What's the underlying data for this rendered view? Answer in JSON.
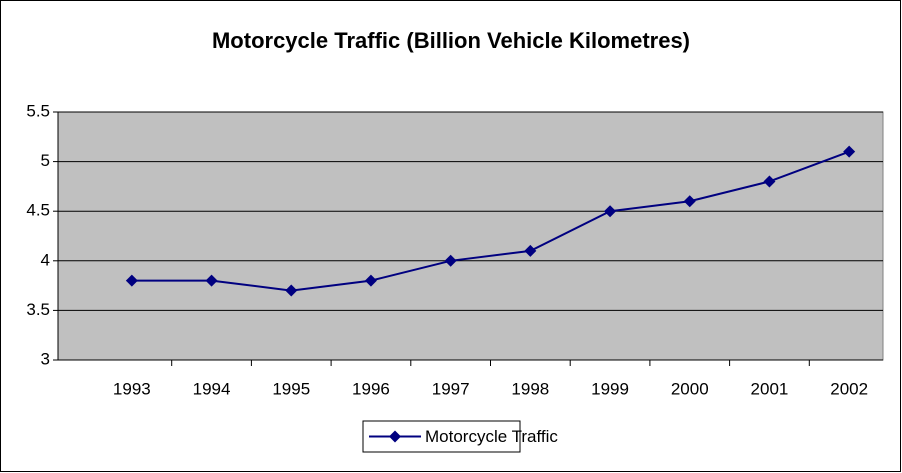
{
  "chart_data": {
    "type": "line",
    "title": "Motorcycle Traffic (Billion Vehicle Kilometres)",
    "categories": [
      "1993",
      "1994",
      "1995",
      "1996",
      "1997",
      "1998",
      "1999",
      "2000",
      "2001",
      "2002"
    ],
    "series": [
      {
        "name": "Motorcycle Traffic",
        "color": "#000080",
        "values": [
          3.8,
          3.8,
          3.7,
          3.8,
          4.0,
          4.1,
          4.5,
          4.6,
          4.8,
          5.1
        ]
      }
    ],
    "ylim": [
      3,
      5.5
    ],
    "yticks": [
      3,
      3.5,
      4,
      4.5,
      5,
      5.5
    ],
    "grid": true,
    "legend": "bottom"
  }
}
